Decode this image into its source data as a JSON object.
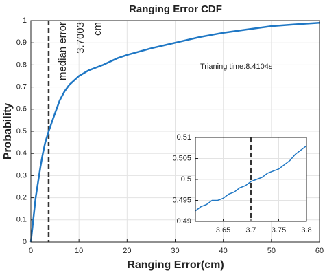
{
  "chart_data": [
    {
      "type": "line",
      "title": "Ranging Error CDF",
      "xlabel": "Ranging Error(cm)",
      "ylabel": "Probability",
      "series": [
        {
          "color": "#1f77c4",
          "x": [
            0,
            0.5,
            1,
            1.5,
            2,
            2.5,
            3,
            3.7,
            4.5,
            5,
            6,
            7,
            8,
            10,
            12,
            15,
            18,
            20,
            25,
            30,
            35,
            40,
            45,
            50,
            55,
            60
          ],
          "values": [
            0,
            0.1,
            0.2,
            0.27,
            0.34,
            0.4,
            0.45,
            0.5,
            0.55,
            0.58,
            0.64,
            0.68,
            0.71,
            0.75,
            0.775,
            0.8,
            0.83,
            0.845,
            0.875,
            0.9,
            0.925,
            0.945,
            0.96,
            0.975,
            0.983,
            0.99
          ]
        }
      ],
      "xlim": [
        0,
        60
      ],
      "xticks": [
        0,
        10,
        20,
        30,
        40,
        50,
        60
      ],
      "ylim": [
        0,
        1
      ],
      "yticks": [
        0,
        0.1,
        0.2,
        0.3,
        0.4,
        0.5,
        0.6,
        0.7,
        0.8,
        0.9,
        1
      ],
      "grid": true,
      "annotations": {
        "median_label": "median error",
        "median_value": 3.7003,
        "median_unit": "cm",
        "training": "Trianing time:8.4104s"
      }
    },
    {
      "type": "line",
      "series": [
        {
          "color": "#1f77c4",
          "x": [
            3.6,
            3.61,
            3.62,
            3.63,
            3.64,
            3.65,
            3.66,
            3.67,
            3.68,
            3.69,
            3.7,
            3.71,
            3.72,
            3.73,
            3.74,
            3.75,
            3.76,
            3.77,
            3.78,
            3.79,
            3.8
          ],
          "values": [
            0.4925,
            0.4935,
            0.494,
            0.495,
            0.495,
            0.4955,
            0.4965,
            0.497,
            0.498,
            0.4985,
            0.4995,
            0.5,
            0.5005,
            0.5015,
            0.502,
            0.5025,
            0.5035,
            0.5045,
            0.506,
            0.507,
            0.508
          ]
        }
      ],
      "xlim": [
        3.6,
        3.8
      ],
      "xticks": [
        3.65,
        3.7,
        3.75,
        3.8
      ],
      "ylim": [
        0.49,
        0.51
      ],
      "yticks": [
        0.49,
        0.495,
        0.5,
        0.505,
        0.51
      ],
      "grid": true,
      "median_value": 3.7003
    }
  ]
}
